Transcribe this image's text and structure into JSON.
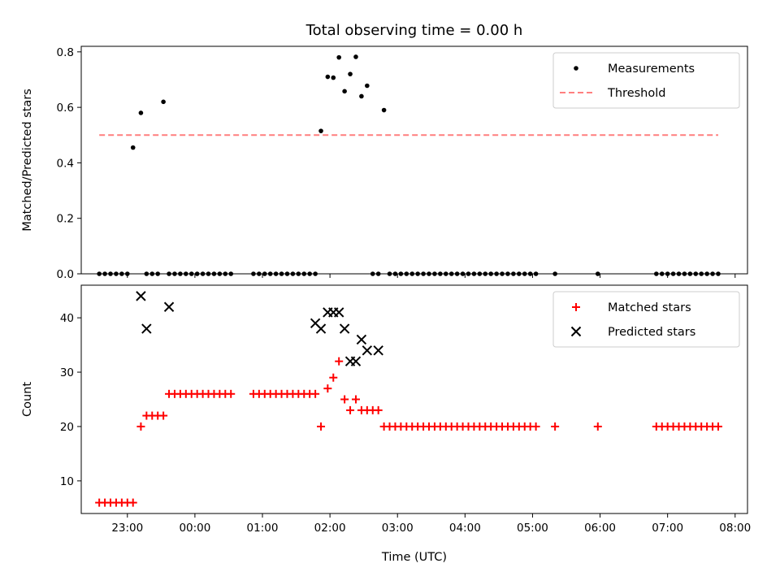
{
  "title": "Total observing time = 0.00 h",
  "colors": {
    "measurement": "#000000",
    "threshold": "#ff7f7f",
    "matched": "#ff0000",
    "predicted": "#000000"
  },
  "chart_data": [
    {
      "type": "scatter",
      "panel": "top",
      "ylabel": "Matched/Predicted stars",
      "xlabel": "",
      "ylim": [
        0,
        0.82
      ],
      "yticks": [
        0.0,
        0.2,
        0.4,
        0.6,
        0.8
      ],
      "ytick_labels": [
        "0.0",
        "0.2",
        "0.4",
        "0.6",
        "0.8"
      ],
      "xlim": [
        "22:19",
        "08:11"
      ],
      "legend": {
        "placement": "top-right",
        "entries": [
          "Measurements",
          "Threshold"
        ]
      },
      "series": [
        {
          "name": "Measurements",
          "marker": "dot",
          "x": [
            "22:35",
            "22:40",
            "22:45",
            "22:50",
            "22:55",
            "23:00",
            "23:05",
            "23:12",
            "23:17",
            "23:22",
            "23:27",
            "23:32",
            "23:37",
            "23:42",
            "23:47",
            "23:52",
            "23:57",
            "00:02",
            "00:07",
            "00:12",
            "00:17",
            "00:22",
            "00:27",
            "00:32",
            "00:52",
            "00:57",
            "01:02",
            "01:07",
            "01:12",
            "01:17",
            "01:22",
            "01:27",
            "01:32",
            "01:37",
            "01:42",
            "01:47",
            "01:52",
            "01:58",
            "02:03",
            "02:08",
            "02:13",
            "02:18",
            "02:23",
            "02:28",
            "02:33",
            "02:38",
            "02:43",
            "02:48",
            "02:53",
            "02:58",
            "03:03",
            "03:08",
            "03:13",
            "03:18",
            "03:23",
            "03:28",
            "03:33",
            "03:38",
            "03:43",
            "03:48",
            "03:53",
            "03:58",
            "04:03",
            "04:08",
            "04:13",
            "04:18",
            "04:23",
            "04:28",
            "04:33",
            "04:38",
            "04:43",
            "04:48",
            "04:53",
            "04:58",
            "05:03",
            "05:20",
            "05:58",
            "06:50",
            "06:55",
            "07:00",
            "07:05",
            "07:10",
            "07:15",
            "07:20",
            "07:25",
            "07:30",
            "07:35",
            "07:40",
            "07:45"
          ],
          "y": [
            0,
            0,
            0,
            0,
            0,
            0,
            0.455,
            0.58,
            0,
            0,
            0,
            0.62,
            0,
            0,
            0,
            0,
            0,
            0,
            0,
            0,
            0,
            0,
            0,
            0,
            0,
            0,
            0,
            0,
            0,
            0,
            0,
            0,
            0,
            0,
            0,
            0,
            0.515,
            0.71,
            0.707,
            0.78,
            0.658,
            0.72,
            0.782,
            0.64,
            0.678,
            0,
            0,
            0.59,
            0,
            0,
            0,
            0,
            0,
            0,
            0,
            0,
            0,
            0,
            0,
            0,
            0,
            0,
            0,
            0,
            0,
            0,
            0,
            0,
            0,
            0,
            0,
            0,
            0,
            0,
            0,
            0,
            0,
            0,
            0,
            0,
            0,
            0,
            0,
            0,
            0,
            0,
            0,
            0,
            0
          ]
        },
        {
          "name": "Threshold",
          "type": "line",
          "style": "dashed",
          "x": [
            "22:35",
            "07:45"
          ],
          "y": [
            0.5,
            0.5
          ]
        }
      ]
    },
    {
      "type": "scatter",
      "panel": "bottom",
      "ylabel": "Count",
      "xlabel": "Time (UTC)",
      "ylim": [
        4,
        46
      ],
      "yticks": [
        10,
        20,
        30,
        40
      ],
      "ytick_labels": [
        "10",
        "20",
        "30",
        "40"
      ],
      "xlim": [
        "22:19",
        "08:11"
      ],
      "xticks": [
        "23:00",
        "00:00",
        "01:00",
        "02:00",
        "03:00",
        "04:00",
        "05:00",
        "06:00",
        "07:00",
        "08:00"
      ],
      "xtick_labels": [
        "23:00",
        "00:00",
        "01:00",
        "02:00",
        "03:00",
        "04:00",
        "05:00",
        "06:00",
        "07:00",
        "08:00"
      ],
      "legend": {
        "placement": "top-right",
        "entries": [
          "Matched stars",
          "Predicted stars"
        ]
      },
      "series": [
        {
          "name": "Matched stars",
          "marker": "plus",
          "x": [
            "22:35",
            "22:40",
            "22:45",
            "22:50",
            "22:55",
            "23:00",
            "23:05",
            "23:12",
            "23:17",
            "23:22",
            "23:27",
            "23:32",
            "23:37",
            "23:42",
            "23:47",
            "23:52",
            "23:57",
            "00:02",
            "00:07",
            "00:12",
            "00:17",
            "00:22",
            "00:27",
            "00:32",
            "00:52",
            "00:57",
            "01:02",
            "01:07",
            "01:12",
            "01:17",
            "01:22",
            "01:27",
            "01:32",
            "01:37",
            "01:42",
            "01:47",
            "01:52",
            "01:58",
            "02:03",
            "02:08",
            "02:13",
            "02:18",
            "02:23",
            "02:28",
            "02:33",
            "02:38",
            "02:43",
            "02:48",
            "02:53",
            "02:58",
            "03:03",
            "03:08",
            "03:13",
            "03:18",
            "03:23",
            "03:28",
            "03:33",
            "03:38",
            "03:43",
            "03:48",
            "03:53",
            "03:58",
            "04:03",
            "04:08",
            "04:13",
            "04:18",
            "04:23",
            "04:28",
            "04:33",
            "04:38",
            "04:43",
            "04:48",
            "04:53",
            "04:58",
            "05:03",
            "05:20",
            "05:58",
            "06:50",
            "06:55",
            "07:00",
            "07:05",
            "07:10",
            "07:15",
            "07:20",
            "07:25",
            "07:30",
            "07:35",
            "07:40",
            "07:45"
          ],
          "y": [
            6,
            6,
            6,
            6,
            6,
            6,
            6,
            20,
            22,
            22,
            22,
            22,
            26,
            26,
            26,
            26,
            26,
            26,
            26,
            26,
            26,
            26,
            26,
            26,
            26,
            26,
            26,
            26,
            26,
            26,
            26,
            26,
            26,
            26,
            26,
            26,
            20,
            27,
            29,
            32,
            25,
            23,
            25,
            23,
            23,
            23,
            23,
            20,
            20,
            20,
            20,
            20,
            20,
            20,
            20,
            20,
            20,
            20,
            20,
            20,
            20,
            20,
            20,
            20,
            20,
            20,
            20,
            20,
            20,
            20,
            20,
            20,
            20,
            20,
            20,
            20,
            20,
            20,
            20,
            20,
            20,
            20,
            20,
            20,
            20,
            20,
            20,
            20,
            20
          ]
        },
        {
          "name": "Predicted stars",
          "marker": "x",
          "x": [
            "23:12",
            "23:17",
            "23:37",
            "01:47",
            "01:52",
            "01:58",
            "02:03",
            "02:08",
            "02:13",
            "02:18",
            "02:23",
            "02:28",
            "02:33",
            "02:43"
          ],
          "y": [
            44,
            38,
            42,
            39,
            38,
            41,
            41,
            41,
            38,
            32,
            32,
            36,
            34,
            34
          ]
        }
      ]
    }
  ]
}
